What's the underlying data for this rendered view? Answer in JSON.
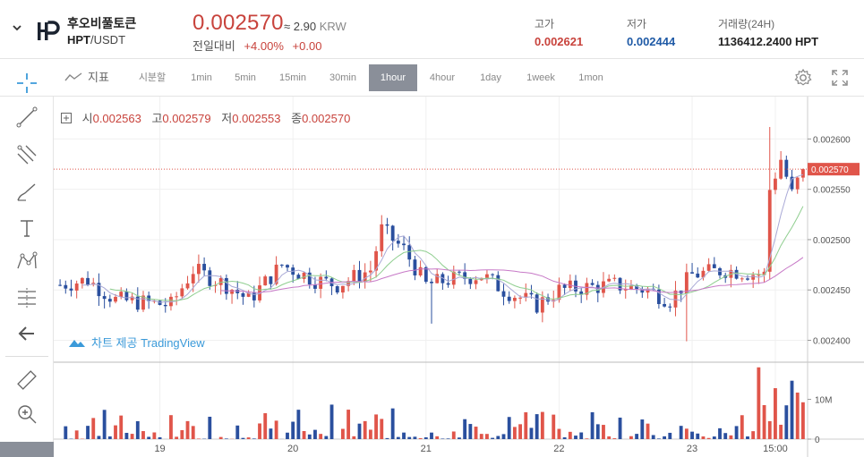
{
  "coin": {
    "name": "후오비풀토큰",
    "base": "HPT",
    "quote": "USDT"
  },
  "price": {
    "last": "0.002570",
    "krw_prefix": "≈",
    "krw_value": "2.90",
    "krw_unit": "KRW"
  },
  "change": {
    "label": "전일대비",
    "percent": "+4.00%",
    "amount": "+0.00"
  },
  "stats": [
    {
      "label": "고가",
      "value": "0.002621",
      "color": "#c8433c"
    },
    {
      "label": "저가",
      "value": "0.002444",
      "color": "#1f5aa6"
    },
    {
      "label": "거래량(24H)",
      "value": "1136412.2400 HPT",
      "color": "#222222"
    }
  ],
  "toolbar": {
    "indicator_label": "지표",
    "timeframes": [
      "시분할",
      "1min",
      "5min",
      "15min",
      "30min",
      "1hour",
      "4hour",
      "1day",
      "1week",
      "1mon"
    ],
    "active_timeframe": "1hour"
  },
  "ohlc": {
    "open_label": "시",
    "open": "0.002563",
    "high_label": "고",
    "high": "0.002579",
    "low_label": "저",
    "low": "0.002553",
    "close_label": "종",
    "close": "0.002570"
  },
  "watermark": "차트 제공 TradingView",
  "left_tools": [
    "crosshair-icon",
    "trend-line-icon",
    "fib-icon",
    "brush-icon",
    "text-icon",
    "pattern-icon",
    "measure-lines-icon",
    "back-arrow-icon",
    "ruler-icon",
    "zoom-icon"
  ],
  "colors": {
    "up": "#e0554a",
    "down": "#2a4f9e",
    "accent": "#3b9ad9",
    "price_label_bg": "#e0554a"
  },
  "chart_data": {
    "type": "candlestick",
    "price_axis_ticks": [
      "0.002600",
      "0.002550",
      "0.002500",
      "0.002450",
      "0.002400"
    ],
    "ylim": [
      0.00238,
      0.002635
    ],
    "current_price_label": "0.002570",
    "current_price": 0.00257,
    "time_axis_ticks": [
      {
        "label": "19",
        "index": 18
      },
      {
        "label": "20",
        "index": 42
      },
      {
        "label": "21",
        "index": 66
      },
      {
        "label": "22",
        "index": 90
      },
      {
        "label": "23",
        "index": 114
      },
      {
        "label": "15:00",
        "index": 129
      }
    ],
    "volume_axis_ticks": [
      {
        "label": "10M",
        "value": 10
      },
      {
        "label": "0",
        "value": 0
      }
    ],
    "volume_max": 18,
    "candle_count": 135,
    "anchors": [
      {
        "i": 0,
        "p": 0.002455
      },
      {
        "i": 5,
        "p": 0.00246
      },
      {
        "i": 10,
        "p": 0.00244
      },
      {
        "i": 20,
        "p": 0.002435
      },
      {
        "i": 24,
        "p": 0.00247
      },
      {
        "i": 30,
        "p": 0.002455
      },
      {
        "i": 34,
        "p": 0.00244
      },
      {
        "i": 40,
        "p": 0.002475
      },
      {
        "i": 46,
        "p": 0.00246
      },
      {
        "i": 50,
        "p": 0.002455
      },
      {
        "i": 56,
        "p": 0.00247
      },
      {
        "i": 58,
        "p": 0.00251
      },
      {
        "i": 62,
        "p": 0.00249
      },
      {
        "i": 66,
        "p": 0.002455
      },
      {
        "i": 70,
        "p": 0.00246
      },
      {
        "i": 76,
        "p": 0.002465
      },
      {
        "i": 80,
        "p": 0.00245
      },
      {
        "i": 86,
        "p": 0.002435
      },
      {
        "i": 90,
        "p": 0.00245
      },
      {
        "i": 100,
        "p": 0.002455
      },
      {
        "i": 106,
        "p": 0.00245
      },
      {
        "i": 110,
        "p": 0.00244
      },
      {
        "i": 114,
        "p": 0.002465
      },
      {
        "i": 120,
        "p": 0.00247
      },
      {
        "i": 127,
        "p": 0.002465
      },
      {
        "i": 128,
        "p": 0.00255
      },
      {
        "i": 130,
        "p": 0.00258
      },
      {
        "i": 132,
        "p": 0.002545
      },
      {
        "i": 134,
        "p": 0.00257
      }
    ]
  }
}
